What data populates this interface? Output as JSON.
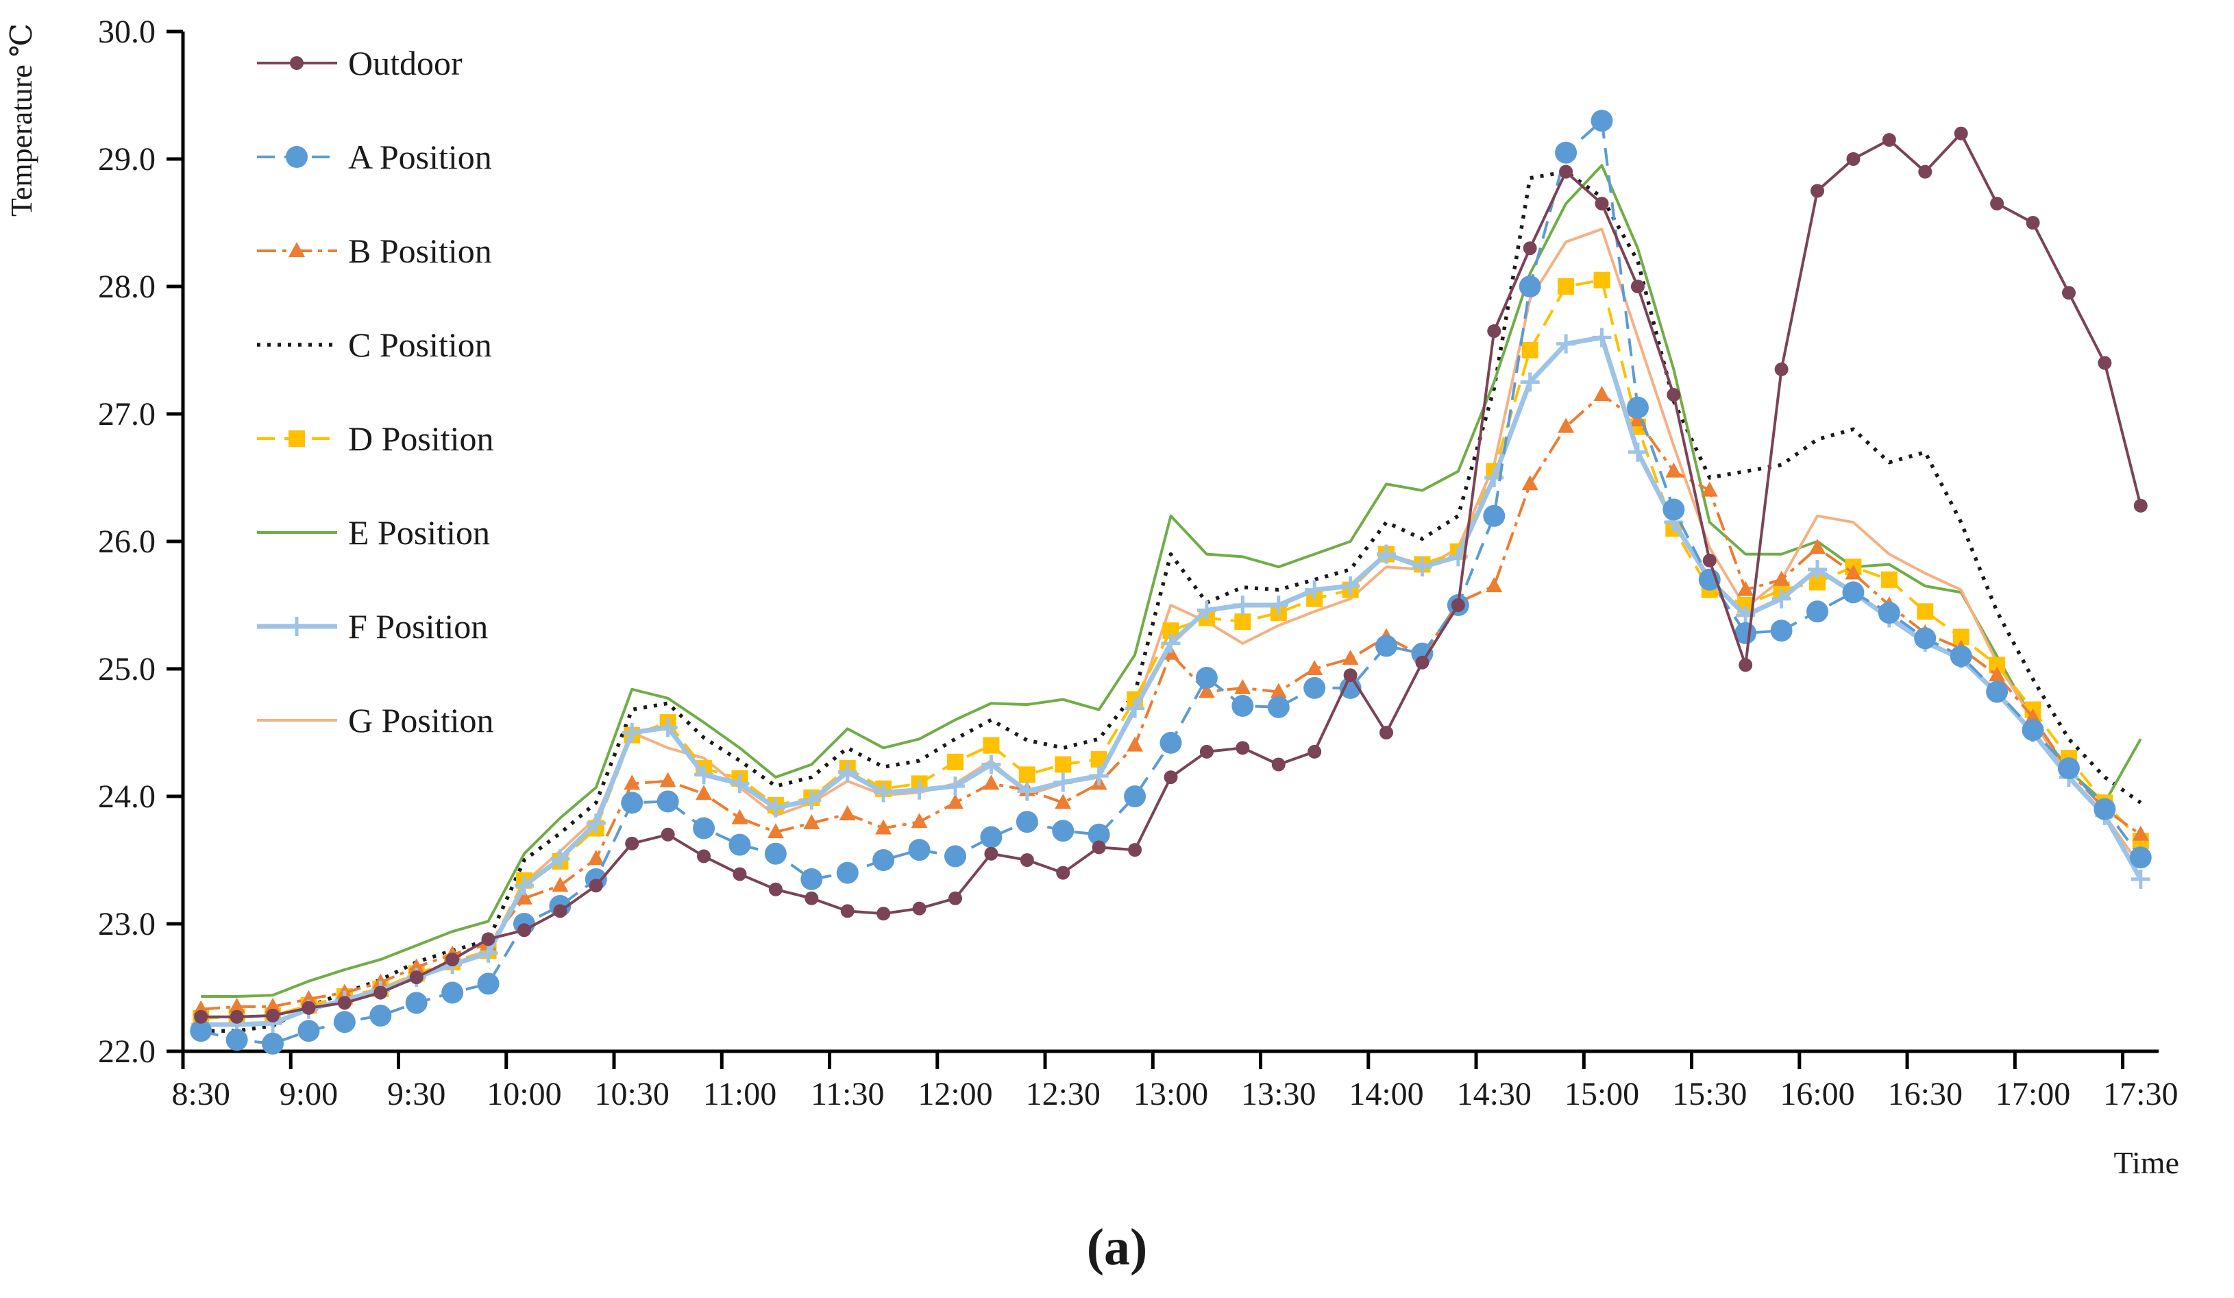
{
  "figure": {
    "caption": "(a)"
  },
  "chart_data": {
    "type": "line",
    "title": "",
    "xlabel": "Time",
    "ylabel": "Temperature ℃",
    "ylim": [
      22.0,
      30.0
    ],
    "ytick_step": 1.0,
    "ytick_labels": [
      "30.0",
      "29.0",
      "28.0",
      "27.0",
      "26.0",
      "25.0",
      "24.0",
      "23.0",
      "22.0"
    ],
    "xtick_labels": [
      "8:30",
      "9:00",
      "9:30",
      "10:00",
      "10:30",
      "11:00",
      "11:30",
      "12:00",
      "12:30",
      "13:00",
      "13:30",
      "14:00",
      "14:30",
      "15:00",
      "15:30",
      "16:00",
      "16:30",
      "17:00",
      "17:30"
    ],
    "x": [
      "8:30",
      "8:40",
      "8:50",
      "9:00",
      "9:10",
      "9:20",
      "9:30",
      "9:40",
      "9:50",
      "10:00",
      "10:10",
      "10:20",
      "10:30",
      "10:40",
      "10:50",
      "11:00",
      "11:10",
      "11:20",
      "11:30",
      "11:40",
      "11:50",
      "12:00",
      "12:10",
      "12:20",
      "12:30",
      "12:40",
      "12:50",
      "13:00",
      "13:10",
      "13:20",
      "13:30",
      "13:40",
      "13:50",
      "14:00",
      "14:10",
      "14:20",
      "14:30",
      "14:40",
      "14:50",
      "15:00",
      "15:10",
      "15:20",
      "15:30",
      "15:40",
      "15:50",
      "16:00",
      "16:10",
      "16:20",
      "16:30",
      "16:40",
      "16:50",
      "17:00",
      "17:10",
      "17:20",
      "17:30"
    ],
    "grid": false,
    "legend_position": "upper-left-inside",
    "series": [
      {
        "name": "Outdoor",
        "color": "#7b4357",
        "marker": "circle-small",
        "line": "solid",
        "values": [
          22.27,
          22.27,
          22.28,
          22.34,
          22.38,
          22.46,
          22.58,
          22.72,
          22.88,
          22.95,
          23.1,
          23.3,
          23.63,
          23.7,
          23.53,
          23.39,
          23.27,
          23.2,
          23.1,
          23.08,
          23.12,
          23.2,
          23.55,
          23.5,
          23.4,
          23.6,
          23.58,
          24.15,
          24.35,
          24.38,
          24.25,
          24.35,
          24.95,
          24.5,
          25.05,
          25.5,
          27.65,
          28.3,
          28.9,
          28.65,
          28.0,
          27.15,
          25.85,
          25.03,
          27.35,
          28.75,
          29.0,
          29.15,
          28.9,
          29.2,
          28.65,
          28.5,
          27.95,
          27.4,
          26.28
        ]
      },
      {
        "name": "A Position",
        "color": "#5b9bd5",
        "marker": "circle-large",
        "line": "dash",
        "values": [
          22.16,
          22.09,
          22.06,
          22.16,
          22.23,
          22.28,
          22.38,
          22.46,
          22.53,
          23.0,
          23.14,
          23.35,
          23.95,
          23.96,
          23.75,
          23.62,
          23.55,
          23.35,
          23.4,
          23.5,
          23.58,
          23.53,
          23.68,
          23.8,
          23.73,
          23.7,
          24.0,
          24.42,
          24.93,
          24.71,
          24.7,
          24.85,
          24.85,
          25.18,
          25.12,
          25.5,
          26.2,
          28.0,
          29.05,
          29.3,
          27.05,
          26.25,
          25.7,
          25.28,
          25.3,
          25.45,
          25.6,
          25.44,
          25.24,
          25.1,
          24.82,
          24.52,
          24.22,
          23.9,
          23.52
        ]
      },
      {
        "name": "B Position",
        "color": "#ed7d31",
        "marker": "triangle",
        "line": "dashdot",
        "values": [
          22.33,
          22.35,
          22.35,
          22.41,
          22.46,
          22.54,
          22.66,
          22.76,
          22.84,
          23.2,
          23.3,
          23.51,
          24.1,
          24.12,
          24.02,
          23.83,
          23.72,
          23.79,
          23.86,
          23.75,
          23.8,
          23.95,
          24.1,
          24.05,
          23.95,
          24.1,
          24.4,
          25.12,
          24.82,
          24.85,
          24.82,
          25.0,
          25.08,
          25.25,
          25.1,
          25.52,
          25.65,
          26.45,
          26.9,
          27.15,
          26.95,
          26.55,
          26.4,
          25.62,
          25.7,
          25.95,
          25.75,
          25.5,
          25.28,
          25.16,
          24.95,
          24.62,
          24.2,
          23.9,
          23.7
        ]
      },
      {
        "name": "C Position",
        "color": "#1a1a1a",
        "marker": "none",
        "line": "dotted",
        "values": [
          22.16,
          22.16,
          22.2,
          22.35,
          22.46,
          22.56,
          22.7,
          22.79,
          22.87,
          23.5,
          23.71,
          23.95,
          24.68,
          24.73,
          24.46,
          24.28,
          24.08,
          24.15,
          24.38,
          24.23,
          24.28,
          24.45,
          24.6,
          24.44,
          24.38,
          24.45,
          24.81,
          25.9,
          25.52,
          25.64,
          25.62,
          25.7,
          25.78,
          26.15,
          26.02,
          26.2,
          27.2,
          28.85,
          28.9,
          28.7,
          28.2,
          27.1,
          26.5,
          26.55,
          26.6,
          26.8,
          26.88,
          26.62,
          26.7,
          26.15,
          25.45,
          24.92,
          24.45,
          24.15,
          23.95
        ]
      },
      {
        "name": "D Position",
        "color": "#ffc000",
        "marker": "square",
        "line": "dash",
        "values": [
          22.26,
          22.27,
          22.28,
          22.36,
          22.43,
          22.49,
          22.61,
          22.7,
          22.79,
          23.34,
          23.49,
          23.75,
          24.48,
          24.58,
          24.22,
          24.14,
          23.93,
          23.99,
          24.22,
          24.06,
          24.1,
          24.27,
          24.4,
          24.17,
          24.25,
          24.29,
          24.76,
          25.3,
          25.4,
          25.37,
          25.44,
          25.55,
          25.62,
          25.9,
          25.82,
          25.92,
          26.55,
          27.5,
          28.0,
          28.05,
          26.9,
          26.1,
          25.62,
          25.5,
          25.62,
          25.68,
          25.8,
          25.7,
          25.45,
          25.25,
          25.03,
          24.68,
          24.3,
          23.95,
          23.65
        ]
      },
      {
        "name": "E Position",
        "color": "#70ad47",
        "marker": "none",
        "line": "solid",
        "values": [
          22.43,
          22.43,
          22.44,
          22.55,
          22.64,
          22.72,
          22.83,
          22.94,
          23.02,
          23.55,
          23.83,
          24.07,
          24.84,
          24.77,
          24.58,
          24.38,
          24.15,
          24.25,
          24.53,
          24.38,
          24.45,
          24.6,
          24.73,
          24.72,
          24.76,
          24.68,
          25.11,
          26.2,
          25.9,
          25.88,
          25.8,
          25.9,
          26.0,
          26.45,
          26.4,
          26.55,
          27.25,
          28.1,
          28.65,
          28.95,
          28.3,
          27.35,
          26.15,
          25.9,
          25.9,
          26.0,
          25.8,
          25.82,
          25.65,
          25.6,
          25.1,
          24.6,
          24.2,
          23.95,
          24.45
        ]
      },
      {
        "name": "F Position",
        "color": "#9dc3e6",
        "marker": "plus",
        "line": "solid-thick",
        "values": [
          22.21,
          22.21,
          22.22,
          22.33,
          22.4,
          22.48,
          22.58,
          22.68,
          22.77,
          23.3,
          23.51,
          23.79,
          24.5,
          24.54,
          24.17,
          24.1,
          23.91,
          23.97,
          24.19,
          24.03,
          24.05,
          24.08,
          24.25,
          24.04,
          24.11,
          24.16,
          24.69,
          25.2,
          25.46,
          25.5,
          25.5,
          25.62,
          25.65,
          25.9,
          25.8,
          25.88,
          26.5,
          27.25,
          27.55,
          27.6,
          26.7,
          26.15,
          25.7,
          25.42,
          25.55,
          25.78,
          25.6,
          25.4,
          25.21,
          25.08,
          24.81,
          24.5,
          24.15,
          23.85,
          23.35
        ]
      },
      {
        "name": "G Position",
        "color": "#f4b183",
        "marker": "none",
        "line": "solid",
        "values": [
          22.21,
          22.21,
          22.22,
          22.33,
          22.41,
          22.49,
          22.6,
          22.69,
          22.78,
          23.32,
          23.57,
          23.83,
          24.5,
          24.38,
          24.3,
          24.07,
          23.85,
          23.95,
          24.12,
          24.01,
          24.03,
          24.1,
          24.28,
          24.01,
          24.1,
          24.15,
          24.67,
          25.5,
          25.37,
          25.2,
          25.34,
          25.45,
          25.55,
          25.8,
          25.78,
          25.95,
          26.6,
          27.9,
          28.35,
          28.45,
          27.6,
          26.75,
          25.95,
          25.48,
          25.7,
          26.2,
          26.15,
          25.9,
          25.75,
          25.62,
          25.05,
          24.6,
          24.15,
          23.85,
          23.45
        ]
      }
    ]
  }
}
